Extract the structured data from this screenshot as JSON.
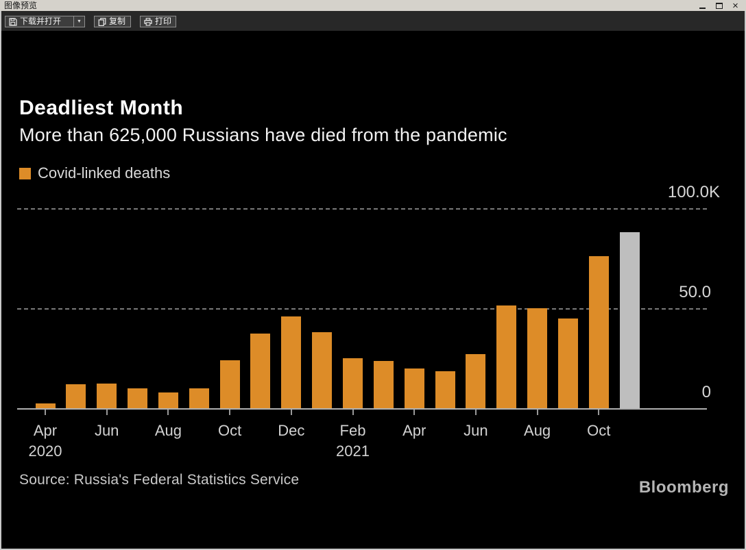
{
  "window": {
    "title": "图像预览",
    "close_glyph": "×",
    "controls": [
      "minimize-icon",
      "maximize-icon",
      "close-icon"
    ]
  },
  "toolbar": {
    "buttons": [
      {
        "label": "下载并打开",
        "icon": "save-icon",
        "has_dropdown": true
      },
      {
        "label": "复制",
        "icon": "copy-icon"
      },
      {
        "label": "打印",
        "icon": "print-icon"
      }
    ]
  },
  "chart_data": {
    "type": "bar",
    "title": "Deadliest Month",
    "subtitle": "More than 625,000 Russians have died from the pandemic",
    "legend": [
      {
        "label": "Covid-linked deaths",
        "color": "#dd8c28"
      }
    ],
    "source": "Source: Russia's Federal Statistics Service",
    "brand": "Bloomberg",
    "unit": "deaths, thousands",
    "categories": [
      "Apr 2020",
      "May 2020",
      "Jun 2020",
      "Jul 2020",
      "Aug 2020",
      "Sep 2020",
      "Oct 2020",
      "Nov 2020",
      "Dec 2020",
      "Jan 2021",
      "Feb 2021",
      "Mar 2021",
      "Apr 2021",
      "May 2021",
      "Jun 2021",
      "Jul 2021",
      "Aug 2021",
      "Sep 2021",
      "Oct 2021",
      "Nov 2021"
    ],
    "values": [
      2.4,
      12.1,
      12.2,
      10.0,
      8.0,
      10.0,
      24.1,
      37.5,
      45.8,
      37.9,
      25.1,
      23.8,
      20.0,
      18.6,
      26.9,
      51.4,
      49.9,
      44.8,
      75.9,
      87.9
    ],
    "highlight_index": 19,
    "bar_color": "#dd8c28",
    "highlight_color": "#bebebe",
    "background_color": "#000000",
    "ylim": [
      0,
      100
    ],
    "yticks": [
      {
        "label": "100.0K",
        "value": 100
      },
      {
        "label": "50.0",
        "value": 50
      },
      {
        "label": "0",
        "value": 0
      }
    ],
    "xticks": [
      {
        "month": "Apr",
        "year": "2020",
        "index": 0
      },
      {
        "month": "Jun",
        "index": 2
      },
      {
        "month": "Aug",
        "index": 4
      },
      {
        "month": "Oct",
        "index": 6
      },
      {
        "month": "Dec",
        "index": 8
      },
      {
        "month": "Feb",
        "year": "2021",
        "index": 10
      },
      {
        "month": "Apr",
        "index": 12
      },
      {
        "month": "Jun",
        "index": 14
      },
      {
        "month": "Aug",
        "index": 16
      },
      {
        "month": "Oct",
        "index": 18
      }
    ],
    "grid": "horizontal-dashed",
    "legend_position": "top-left"
  }
}
